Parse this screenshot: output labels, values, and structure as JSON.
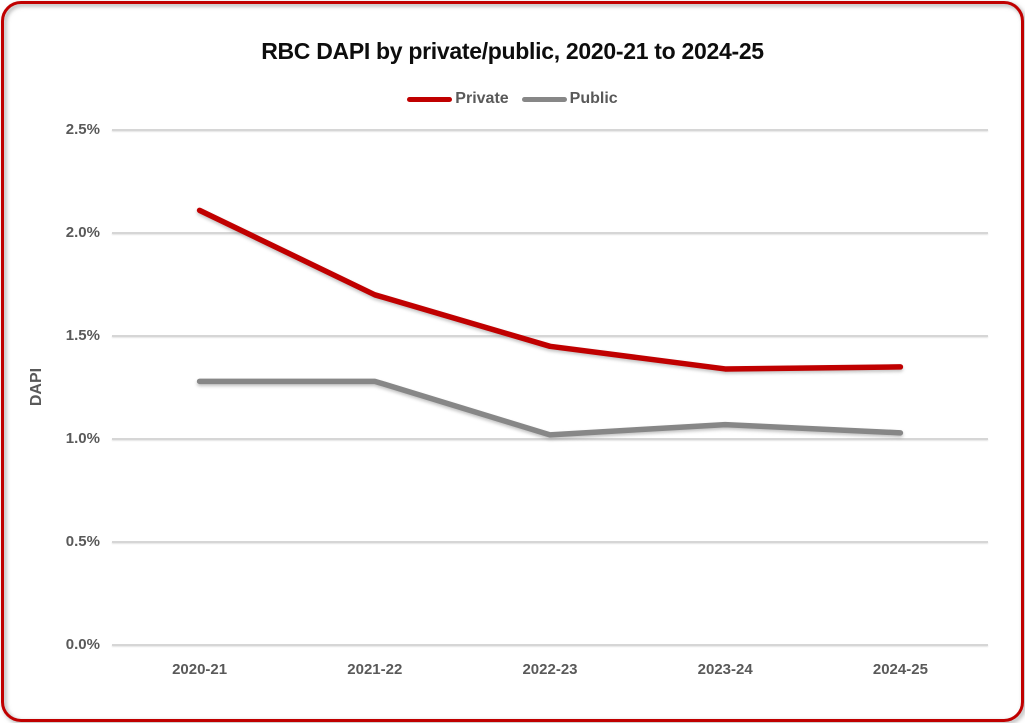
{
  "frame": {
    "border_color": "#C00000",
    "background_color": "#FFFFFF"
  },
  "chart_data": {
    "type": "line",
    "title": "RBC DAPI by private/public, 2020-21 to 2024-25",
    "xlabel": "",
    "ylabel": "DAPI",
    "categories": [
      "2020-21",
      "2021-22",
      "2022-23",
      "2023-24",
      "2024-25"
    ],
    "series": [
      {
        "name": "Private",
        "color": "#C00000",
        "values": [
          2.11,
          1.7,
          1.45,
          1.34,
          1.35
        ]
      },
      {
        "name": "Public",
        "color": "#878787",
        "values": [
          1.28,
          1.28,
          1.02,
          1.07,
          1.03
        ]
      }
    ],
    "ylim": [
      0,
      2.5
    ],
    "ytick_step": 0.5,
    "ytick_labels": [
      "0.0%",
      "0.5%",
      "1.0%",
      "1.5%",
      "2.0%",
      "2.5%"
    ],
    "grid": "horizontal",
    "gridline_color": "#D6D6D6",
    "axis_text_color": "#595959",
    "legend_position": "top-center"
  }
}
